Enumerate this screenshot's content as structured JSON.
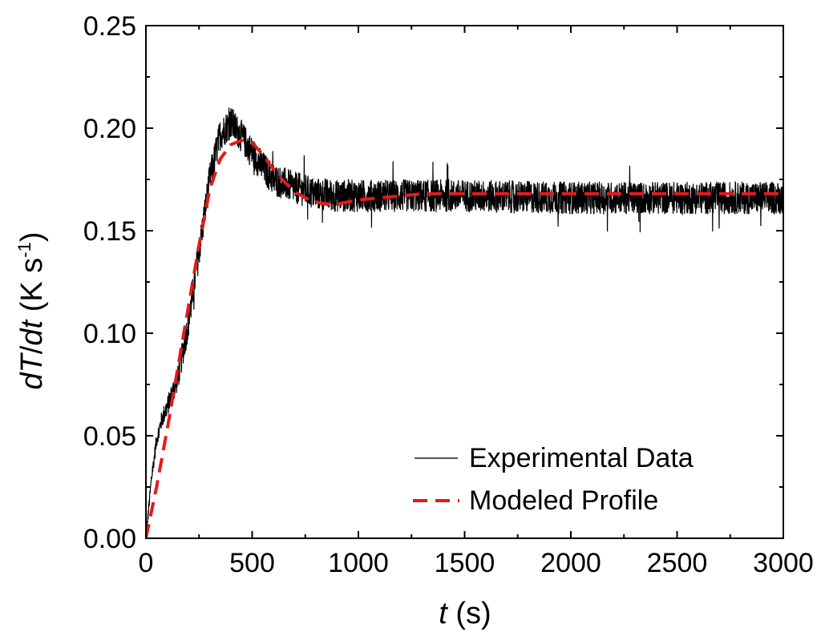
{
  "chart_data": {
    "type": "line",
    "title": "",
    "x_axis": {
      "label_var": "t",
      "label_unit": " (s)",
      "range": [
        0,
        3000
      ],
      "ticks": [
        0,
        500,
        1000,
        1500,
        2000,
        2500,
        3000
      ],
      "tick_labels": [
        "0",
        "500",
        "1000",
        "1500",
        "2000",
        "2500",
        "3000"
      ]
    },
    "y_axis": {
      "label_var1": "dT",
      "label_slash": "/",
      "label_var2": "dt",
      "label_unit_open": " (K s",
      "label_unit_sup": "-1",
      "label_unit_close": ")",
      "range": [
        0,
        0.25
      ],
      "ticks": [
        0,
        0.05,
        0.1,
        0.15,
        0.2,
        0.25
      ],
      "tick_labels": [
        "0.00",
        "0.05",
        "0.10",
        "0.15",
        "0.20",
        "0.25"
      ]
    },
    "grid": false,
    "legend_position": "bottom-right",
    "series": [
      {
        "name": "Experimental Data",
        "style": "solid-noisy",
        "color": "#000000",
        "x": [
          0,
          25,
          50,
          75,
          100,
          150,
          200,
          250,
          300,
          350,
          400,
          450,
          500,
          550,
          600,
          700,
          800,
          900,
          1000,
          1200,
          1500,
          2000,
          2500,
          3000
        ],
        "y": [
          0.0,
          0.028,
          0.048,
          0.058,
          0.064,
          0.078,
          0.105,
          0.14,
          0.175,
          0.197,
          0.203,
          0.196,
          0.188,
          0.181,
          0.175,
          0.171,
          0.168,
          0.167,
          0.167,
          0.167,
          0.167,
          0.166,
          0.166,
          0.166
        ],
        "noise_amplitude": 0.008
      },
      {
        "name": "Modeled Profile",
        "style": "dashed",
        "color": "#e41a1c",
        "x": [
          0,
          50,
          100,
          150,
          200,
          250,
          300,
          350,
          400,
          450,
          500,
          550,
          600,
          650,
          700,
          750,
          800,
          850,
          900,
          950,
          1000,
          1100,
          1200,
          1300,
          1500,
          2000,
          2500,
          3000
        ],
        "y": [
          0.0,
          0.025,
          0.053,
          0.083,
          0.113,
          0.143,
          0.17,
          0.185,
          0.192,
          0.194,
          0.193,
          0.187,
          0.18,
          0.174,
          0.169,
          0.166,
          0.164,
          0.163,
          0.163,
          0.164,
          0.165,
          0.166,
          0.167,
          0.168,
          0.168,
          0.168,
          0.168,
          0.168
        ]
      }
    ]
  }
}
